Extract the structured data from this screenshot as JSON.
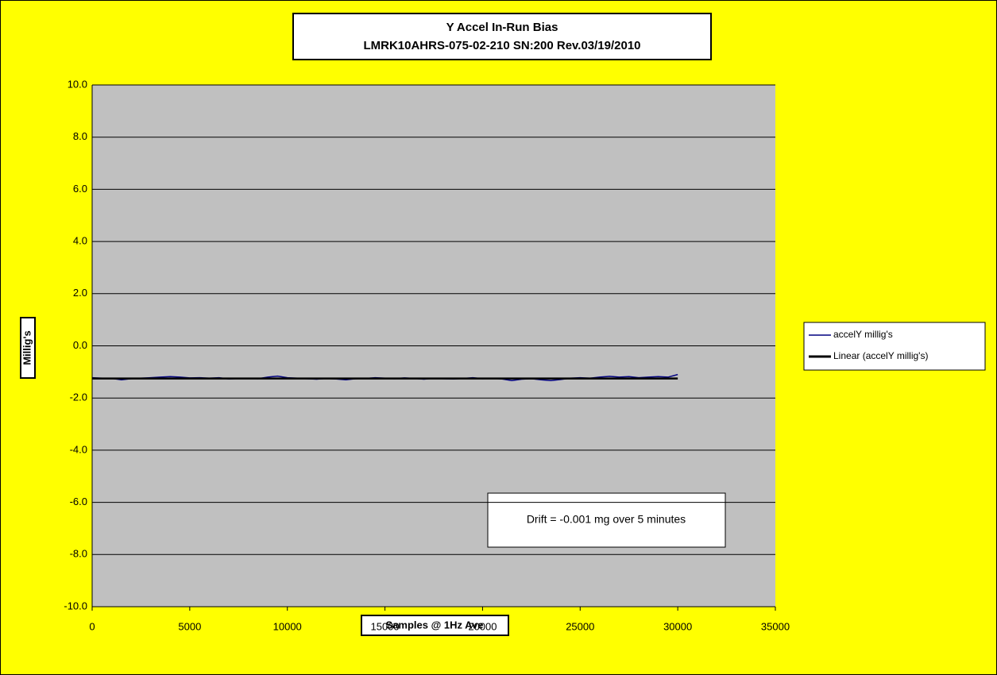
{
  "chart_data": {
    "type": "line",
    "title": "Y Accel In-Run Bias",
    "subtitle": "LMRK10AHRS-075-02-210 SN:200 Rev.03/19/2010",
    "x_label": "Samples @ 1Hz Ave",
    "y_label": "Millig's",
    "annotation": "Drift = -0.001 mg over 5 minutes",
    "xlim": [
      0,
      35000
    ],
    "xticks": [
      0,
      5000,
      10000,
      15000,
      20000,
      25000,
      30000,
      35000
    ],
    "ylim": [
      -10,
      10
    ],
    "yticks": [
      {
        "value": -10,
        "label": "-10.0"
      },
      {
        "value": -8,
        "label": "-8.0"
      },
      {
        "value": -6,
        "label": "-6.0"
      },
      {
        "value": -4,
        "label": "-4.0"
      },
      {
        "value": -2,
        "label": "-2.0"
      },
      {
        "value": 0,
        "label": "0.0"
      },
      {
        "value": 2,
        "label": "2.0"
      },
      {
        "value": 4,
        "label": "4.0"
      },
      {
        "value": 6,
        "label": "6.0"
      },
      {
        "value": 8,
        "label": "8.0"
      },
      {
        "value": 10,
        "label": "10.0"
      }
    ],
    "grid": true,
    "legend": "right",
    "series": [
      {
        "name": "accelY millig's",
        "color": "#000080",
        "x": [
          0,
          500,
          1000,
          1500,
          2000,
          2500,
          3000,
          3500,
          4000,
          4500,
          5000,
          5500,
          6000,
          6500,
          7000,
          7500,
          8000,
          8500,
          9000,
          9500,
          10000,
          10500,
          11000,
          11500,
          12000,
          12500,
          13000,
          13500,
          14000,
          14500,
          15000,
          15500,
          16000,
          16500,
          17000,
          17500,
          18000,
          18500,
          19000,
          19500,
          20000,
          20500,
          21000,
          21500,
          22000,
          22500,
          23000,
          23500,
          24000,
          24500,
          25000,
          25500,
          26000,
          26500,
          27000,
          27500,
          28000,
          28500,
          29000,
          29500,
          30000
        ],
        "values": [
          -1.22,
          -1.24,
          -1.25,
          -1.3,
          -1.26,
          -1.24,
          -1.22,
          -1.2,
          -1.18,
          -1.2,
          -1.23,
          -1.22,
          -1.24,
          -1.22,
          -1.27,
          -1.25,
          -1.24,
          -1.26,
          -1.2,
          -1.16,
          -1.22,
          -1.24,
          -1.26,
          -1.28,
          -1.25,
          -1.27,
          -1.3,
          -1.26,
          -1.25,
          -1.22,
          -1.24,
          -1.26,
          -1.23,
          -1.25,
          -1.28,
          -1.24,
          -1.26,
          -1.27,
          -1.25,
          -1.22,
          -1.26,
          -1.24,
          -1.27,
          -1.33,
          -1.28,
          -1.26,
          -1.3,
          -1.33,
          -1.29,
          -1.24,
          -1.22,
          -1.24,
          -1.2,
          -1.17,
          -1.2,
          -1.18,
          -1.22,
          -1.2,
          -1.18,
          -1.2,
          -1.1
        ]
      },
      {
        "name": "Linear (accelY millig's)",
        "color": "#000000",
        "x": [
          0,
          30000
        ],
        "values": [
          -1.25,
          -1.25
        ]
      }
    ]
  }
}
